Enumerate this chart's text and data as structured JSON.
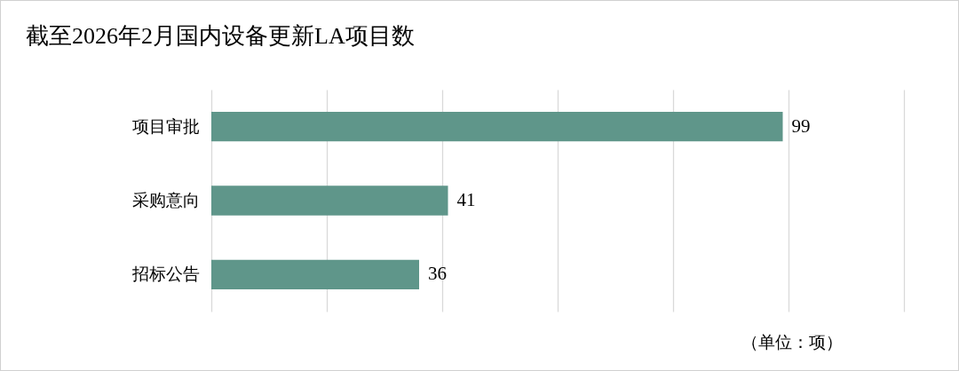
{
  "chart_data": {
    "type": "bar",
    "orientation": "horizontal",
    "title": "截至2026年2月国内设备更新LA项目数",
    "categories": [
      "项目审批",
      "采购意向",
      "招标公告"
    ],
    "values": [
      99,
      41,
      36
    ],
    "color": "#5f968a",
    "xlim": [
      0,
      120
    ],
    "xticks": [
      {
        "value": 0,
        "label": null
      },
      {
        "value": 20,
        "label": null
      },
      {
        "value": 40,
        "label": null
      },
      {
        "value": 60,
        "label": null
      },
      {
        "value": 80,
        "label": null
      },
      {
        "value": 100,
        "label": null
      },
      {
        "value": 120,
        "label": null
      }
    ],
    "grid": "x",
    "data_labels": true,
    "tick_labels": "y",
    "annotations": [
      "（单位：项）"
    ]
  }
}
